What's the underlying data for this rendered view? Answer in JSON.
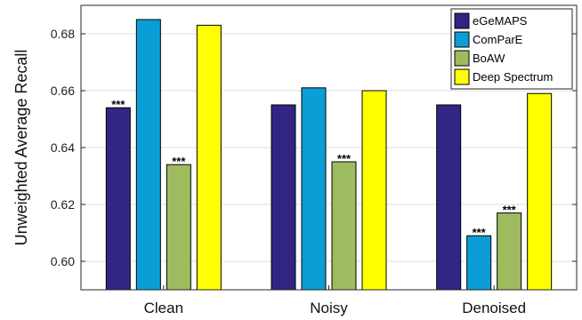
{
  "chart_data": {
    "type": "bar",
    "categories": [
      "Clean",
      "Noisy",
      "Denoised"
    ],
    "series": [
      {
        "name": "eGeMAPS",
        "color": "#312683",
        "values": [
          0.654,
          0.655,
          0.655
        ],
        "annotations": [
          "***",
          "",
          ""
        ]
      },
      {
        "name": "ComParE",
        "color": "#0b9ed6",
        "values": [
          0.685,
          0.661,
          0.609
        ],
        "annotations": [
          "",
          "",
          "***"
        ]
      },
      {
        "name": "BoAW",
        "color": "#9fbb5f",
        "values": [
          0.634,
          0.635,
          0.617
        ],
        "annotations": [
          "***",
          "***",
          "***"
        ]
      },
      {
        "name": "Deep Spectrum",
        "color": "#ffff00",
        "values": [
          0.683,
          0.66,
          0.659
        ],
        "annotations": [
          "",
          "",
          ""
        ]
      }
    ],
    "ylabel": "Unweighted Average Recall",
    "xlabel": "",
    "title": "",
    "ylim": [
      0.59,
      0.69
    ],
    "yticks": [
      0.6,
      0.62,
      0.64,
      0.66,
      0.68
    ],
    "ytick_labels": [
      "0.60",
      "0.62",
      "0.64",
      "0.66",
      "0.68"
    ],
    "grid": true,
    "legend_position": "top-right"
  }
}
